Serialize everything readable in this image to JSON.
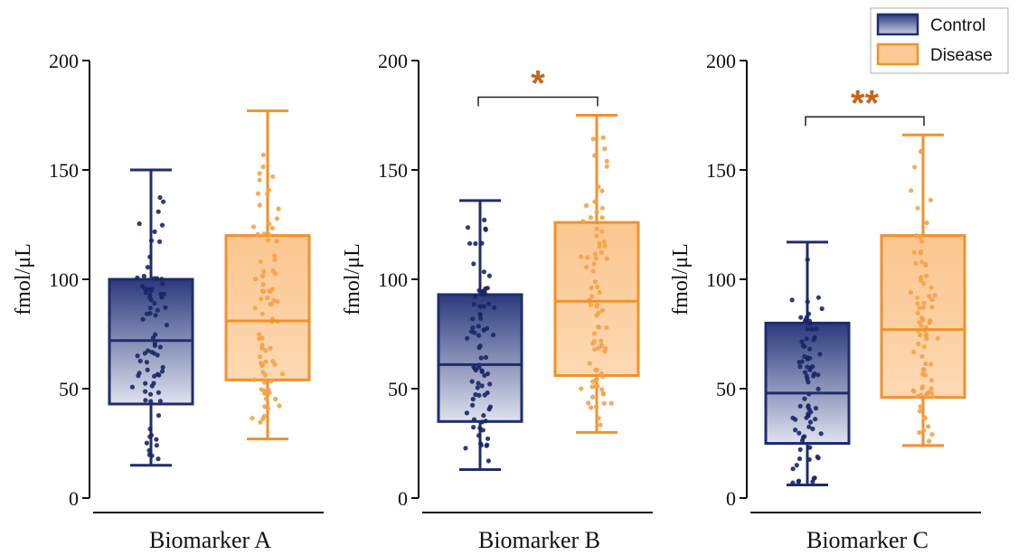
{
  "chart_data": {
    "type": "box",
    "ylabel": "fmol/μL",
    "ylim": [
      0,
      200
    ],
    "yticks": [
      0,
      50,
      100,
      150,
      200
    ],
    "legend": {
      "position": "top-right",
      "entries": [
        "Control",
        "Disease"
      ]
    },
    "colors": {
      "Control": "#1f2d6b",
      "ControlFill": "#4a5a96",
      "Disease": "#f0922b",
      "DiseaseFill": "#fbc995",
      "sig": "#c8651b"
    },
    "panels": [
      {
        "category": "Biomarker A",
        "significance": "",
        "boxes": {
          "Control": {
            "whisker_low": 15,
            "q1": 43,
            "median": 72,
            "q3": 100,
            "whisker_high": 150
          },
          "Disease": {
            "whisker_low": 27,
            "q1": 54,
            "median": 81,
            "q3": 120,
            "whisker_high": 177
          }
        }
      },
      {
        "category": "Biomarker B",
        "significance": "*",
        "boxes": {
          "Control": {
            "whisker_low": 13,
            "q1": 35,
            "median": 61,
            "q3": 93,
            "whisker_high": 136
          },
          "Disease": {
            "whisker_low": 30,
            "q1": 56,
            "median": 90,
            "q3": 126,
            "whisker_high": 175
          }
        }
      },
      {
        "category": "Biomarker C",
        "significance": "**",
        "boxes": {
          "Control": {
            "whisker_low": 6,
            "q1": 25,
            "median": 48,
            "q3": 80,
            "whisker_high": 117
          },
          "Disease": {
            "whisker_low": 24,
            "q1": 46,
            "median": 77,
            "q3": 120,
            "whisker_high": 166
          }
        }
      }
    ]
  }
}
